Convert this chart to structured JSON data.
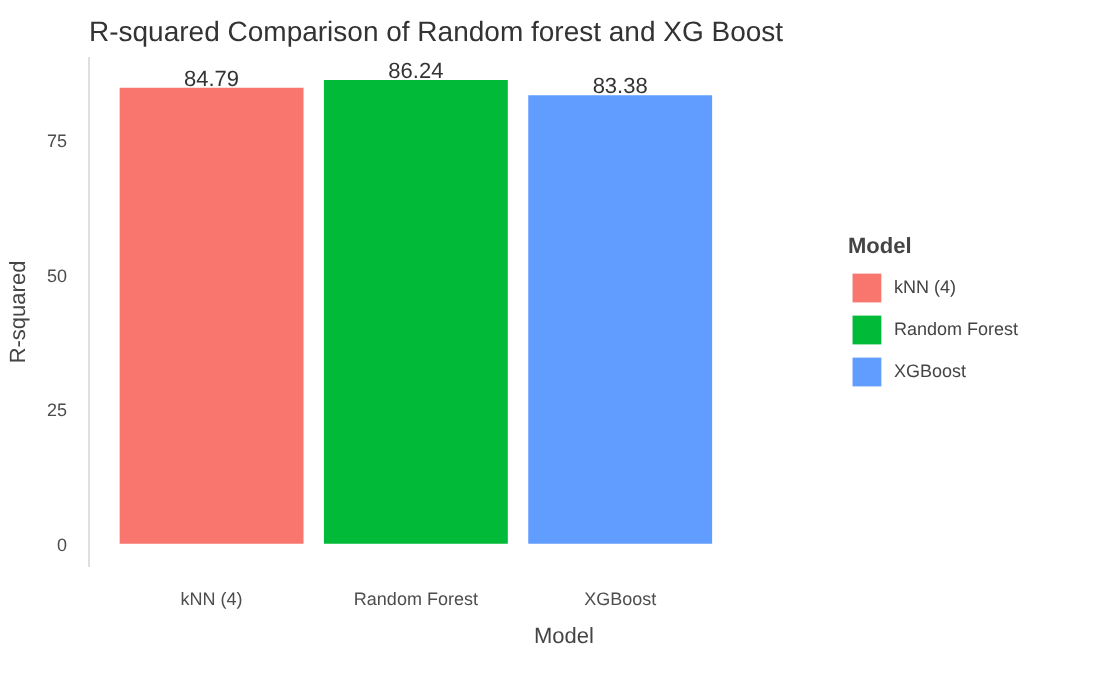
{
  "chart_data": {
    "type": "bar",
    "title": "R-squared Comparison of Random forest and XG Boost",
    "xlabel": "Model",
    "ylabel": "R-squared",
    "legend_title": "Model",
    "categories": [
      "kNN (4)",
      "Random Forest",
      "XGBoost"
    ],
    "series": [
      {
        "name": "kNN (4)",
        "color": "#f8766d",
        "values": [
          84.79,
          null,
          null
        ]
      },
      {
        "name": "Random Forest",
        "color": "#00ba38",
        "values": [
          null,
          86.24,
          null
        ]
      },
      {
        "name": "XGBoost",
        "color": "#619cff",
        "values": [
          null,
          null,
          83.38
        ]
      }
    ],
    "ylim": [
      -4.3,
      90.5
    ],
    "yticks": [
      0,
      25,
      50,
      75
    ],
    "data_labels": true,
    "legend": "right",
    "grid": false
  }
}
